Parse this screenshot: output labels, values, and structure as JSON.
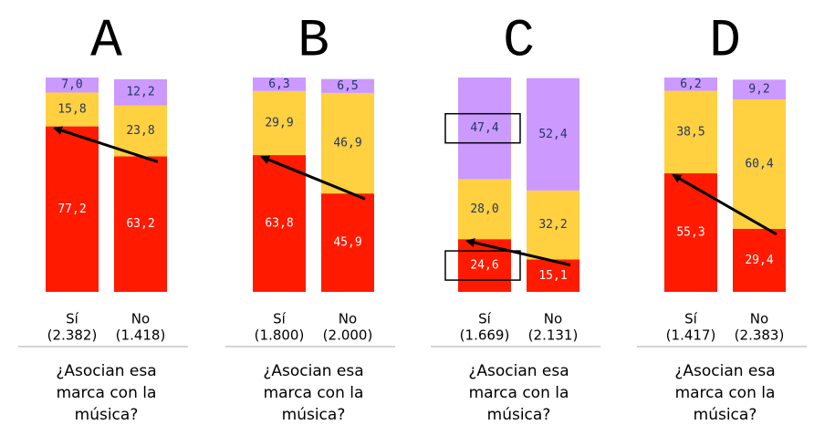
{
  "chart_data": [
    {
      "type": "stacked_bar",
      "title": "A",
      "categories": [
        "Sí",
        "No"
      ],
      "category_counts": [
        "(2.382)",
        "(1.418)"
      ],
      "xlabel": "¿Asocian esa\nmarca con la\nmúsica?",
      "ylim": [
        0,
        100
      ],
      "series": [
        {
          "color": "#ff1a00",
          "values": [
            77.2,
            63.2
          ],
          "value_labels": [
            "77,2",
            "63,2"
          ]
        },
        {
          "color": "#ffd040",
          "values": [
            15.8,
            23.8
          ],
          "value_labels": [
            "15,8",
            "23,8"
          ]
        },
        {
          "color": "#cc99ff",
          "values": [
            7.0,
            12.2
          ],
          "value_labels": [
            "7,0",
            "12,2"
          ]
        }
      ]
    },
    {
      "type": "stacked_bar",
      "title": "B",
      "categories": [
        "Sí",
        "No"
      ],
      "category_counts": [
        "(1.800)",
        "(2.000)"
      ],
      "xlabel": "¿Asocian esa\nmarca con la\nmúsica?",
      "ylim": [
        0,
        100
      ],
      "series": [
        {
          "color": "#ff1a00",
          "values": [
            63.8,
            45.9
          ],
          "value_labels": [
            "63,8",
            "45,9"
          ]
        },
        {
          "color": "#ffd040",
          "values": [
            29.9,
            46.9
          ],
          "value_labels": [
            "29,9",
            "46,9"
          ]
        },
        {
          "color": "#cc99ff",
          "values": [
            6.3,
            6.5
          ],
          "value_labels": [
            "6,3",
            "6,5"
          ]
        }
      ]
    },
    {
      "type": "stacked_bar",
      "title": "C",
      "categories": [
        "Sí",
        "No"
      ],
      "category_counts": [
        "(1.669)",
        "(2.131)"
      ],
      "xlabel": "¿Asocian esa\nmarca con la\nmúsica?",
      "ylim": [
        0,
        100
      ],
      "series": [
        {
          "color": "#ff1a00",
          "values": [
            24.6,
            15.1
          ],
          "value_labels": [
            "24,6",
            "15,1"
          ],
          "boxed": [
            true,
            false
          ]
        },
        {
          "color": "#ffd040",
          "values": [
            28.0,
            32.2
          ],
          "value_labels": [
            "28,0",
            "32,2"
          ]
        },
        {
          "color": "#cc99ff",
          "values": [
            47.4,
            52.4
          ],
          "value_labels": [
            "47,4",
            "52,4"
          ],
          "boxed": [
            true,
            false
          ]
        }
      ]
    },
    {
      "type": "stacked_bar",
      "title": "D",
      "categories": [
        "Sí",
        "No"
      ],
      "category_counts": [
        "(1.417)",
        "(2.383)"
      ],
      "xlabel": "¿Asocian esa\nmarca con la\nmúsica?",
      "ylim": [
        0,
        100
      ],
      "series": [
        {
          "color": "#ff1a00",
          "values": [
            55.3,
            29.4
          ],
          "value_labels": [
            "55,3",
            "29,4"
          ]
        },
        {
          "color": "#ffd040",
          "values": [
            38.5,
            60.4
          ],
          "value_labels": [
            "38,5",
            "60,4"
          ]
        },
        {
          "color": "#cc99ff",
          "values": [
            6.2,
            9.2
          ],
          "value_labels": [
            "6,2",
            "9,2"
          ]
        }
      ]
    }
  ]
}
